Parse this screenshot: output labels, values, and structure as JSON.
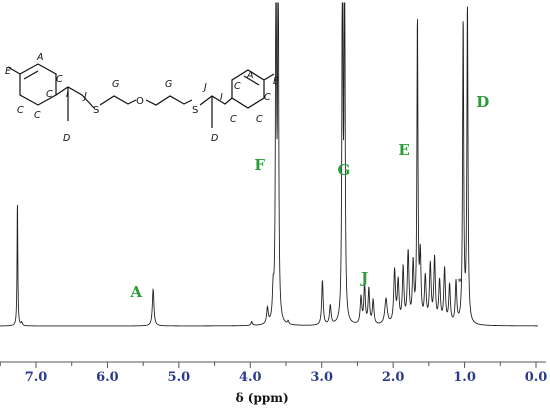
{
  "chart_data": {
    "type": "line",
    "xlabel": "δ (ppm)",
    "x_reversed": true,
    "xlim": [
      0.0,
      7.5
    ],
    "x_ticks": [
      "7.0",
      "6.0",
      "5.0",
      "4.0",
      "3.0",
      "2.0",
      "1.0",
      "0.0"
    ],
    "x_tick_values": [
      7.0,
      6.0,
      5.0,
      4.0,
      3.0,
      2.0,
      1.0,
      0.0
    ],
    "grid": false,
    "peak_labels": [
      {
        "label": "A",
        "ppm": 5.36
      },
      {
        "label": "F",
        "ppm": 3.63
      },
      {
        "label": "G",
        "ppm": 2.69
      },
      {
        "label": "J",
        "ppm": 2.37
      },
      {
        "label": "E",
        "ppm": 1.65
      },
      {
        "label": "D",
        "ppm": 0.97
      }
    ],
    "impurity_marker": {
      "label": "*",
      "ppm": 1.12
    },
    "peaks": [
      {
        "ppm": 7.26,
        "height": 0.4,
        "width": 0.006
      },
      {
        "ppm": 7.2,
        "height": 0.01,
        "width": 0.01
      },
      {
        "ppm": 5.36,
        "height": 0.115,
        "width": 0.013
      },
      {
        "ppm": 3.98,
        "height": 0.012,
        "width": 0.012
      },
      {
        "ppm": 3.76,
        "height": 0.05,
        "width": 0.013
      },
      {
        "ppm": 3.68,
        "height": 0.09,
        "width": 0.012
      },
      {
        "ppm": 3.64,
        "height": 1.3,
        "width": 0.008
      },
      {
        "ppm": 3.61,
        "height": 1.3,
        "width": 0.008
      },
      {
        "ppm": 3.47,
        "height": 0.01,
        "width": 0.01
      },
      {
        "ppm": 2.99,
        "height": 0.14,
        "width": 0.012
      },
      {
        "ppm": 2.88,
        "height": 0.06,
        "width": 0.013
      },
      {
        "ppm": 2.71,
        "height": 1.3,
        "width": 0.008
      },
      {
        "ppm": 2.68,
        "height": 1.3,
        "width": 0.008
      },
      {
        "ppm": 2.45,
        "height": 0.085,
        "width": 0.013
      },
      {
        "ppm": 2.4,
        "height": 0.125,
        "width": 0.012
      },
      {
        "ppm": 2.34,
        "height": 0.11,
        "width": 0.012
      },
      {
        "ppm": 2.28,
        "height": 0.075,
        "width": 0.013
      },
      {
        "ppm": 2.1,
        "height": 0.08,
        "width": 0.02
      },
      {
        "ppm": 1.98,
        "height": 0.165,
        "width": 0.014
      },
      {
        "ppm": 1.93,
        "height": 0.13,
        "width": 0.014
      },
      {
        "ppm": 1.86,
        "height": 0.17,
        "width": 0.013
      },
      {
        "ppm": 1.79,
        "height": 0.22,
        "width": 0.014
      },
      {
        "ppm": 1.72,
        "height": 0.18,
        "width": 0.013
      },
      {
        "ppm": 1.66,
        "height": 0.95,
        "width": 0.0085
      },
      {
        "ppm": 1.62,
        "height": 0.2,
        "width": 0.012
      },
      {
        "ppm": 1.55,
        "height": 0.14,
        "width": 0.014
      },
      {
        "ppm": 1.48,
        "height": 0.18,
        "width": 0.014
      },
      {
        "ppm": 1.42,
        "height": 0.2,
        "width": 0.013
      },
      {
        "ppm": 1.35,
        "height": 0.13,
        "width": 0.014
      },
      {
        "ppm": 1.28,
        "height": 0.17,
        "width": 0.013
      },
      {
        "ppm": 1.21,
        "height": 0.12,
        "width": 0.013
      },
      {
        "ppm": 1.12,
        "height": 0.13,
        "width": 0.012
      },
      {
        "ppm": 1.02,
        "height": 0.95,
        "width": 0.009
      },
      {
        "ppm": 0.96,
        "height": 1.0,
        "width": 0.009
      }
    ]
  },
  "molecule": {
    "labels": [
      "E",
      "A",
      "C",
      "C",
      "C",
      "C",
      "I",
      "D",
      "J",
      "S",
      "G",
      "O",
      "G",
      "S",
      "J",
      "I",
      "D",
      "C",
      "A",
      "E",
      "C",
      "C",
      "C"
    ]
  }
}
